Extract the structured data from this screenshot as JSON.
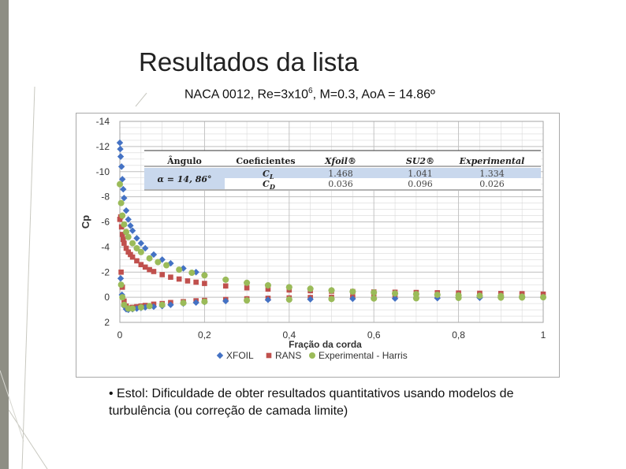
{
  "slide": {
    "title": "Resultados da lista",
    "subtitle_prefix": "NACA 0012, Re=3x10",
    "subtitle_exp": "6",
    "subtitle_suffix": ", M=0.3, AoA = 14.86º",
    "bullet": "• Estol: Dificuldade de obter resultados quantitativos usando modelos de turbulência (ou correção de camada limite)"
  },
  "table": {
    "headers": [
      "Ângulo",
      "Coeficientes",
      "Xfoil®",
      "SU2®",
      "Experimental"
    ],
    "angle": "α = 14, 86°",
    "rows": [
      {
        "coef": "C_L",
        "coef_main": "C",
        "coef_sub": "L",
        "values": [
          "1.468",
          "1.041",
          "1.334"
        ]
      },
      {
        "coef": "C_D",
        "coef_main": "C",
        "coef_sub": "D",
        "values": [
          "0.036",
          "0.096",
          "0.026"
        ]
      }
    ]
  },
  "chart_data": {
    "type": "scatter",
    "ylabel": "Cp",
    "xlabel": "Fração da corda",
    "xlim": [
      0,
      1
    ],
    "ylim": [
      -14,
      2
    ],
    "y_inverted": true,
    "grid": true,
    "legend_position": "bottom",
    "x_ticks": [
      "0",
      "0,2",
      "0,4",
      "0,6",
      "0,8",
      "1"
    ],
    "x_tick_values": [
      0,
      0.2,
      0.4,
      0.6,
      0.8,
      1
    ],
    "y_ticks": [
      "-14",
      "-12",
      "-10",
      "-8",
      "-6",
      "-4",
      "-2",
      "0",
      "2"
    ],
    "y_tick_values": [
      -14,
      -12,
      -10,
      -8,
      -6,
      -4,
      -2,
      0,
      2
    ],
    "series": [
      {
        "name": "XFOIL",
        "marker": "diamond",
        "color": "#4472c4",
        "upper_x": [
          0.0,
          0.001,
          0.002,
          0.004,
          0.006,
          0.008,
          0.01,
          0.015,
          0.02,
          0.025,
          0.03,
          0.04,
          0.05,
          0.06,
          0.08,
          0.1,
          0.12,
          0.15,
          0.18,
          0.2,
          0.25,
          0.3,
          0.35,
          0.4,
          0.45,
          0.5,
          0.55,
          0.6,
          0.65,
          0.7,
          0.75,
          0.8,
          0.85,
          0.9,
          0.95,
          1.0
        ],
        "upper_y": [
          -12.3,
          -11.8,
          -11.2,
          -10.4,
          -9.4,
          -8.6,
          -7.9,
          -6.9,
          -6.2,
          -5.7,
          -5.3,
          -4.7,
          -4.3,
          -3.9,
          -3.4,
          -3.0,
          -2.7,
          -2.3,
          -2.0,
          -1.8,
          -1.4,
          -1.15,
          -0.95,
          -0.8,
          -0.65,
          -0.55,
          -0.45,
          -0.38,
          -0.3,
          -0.25,
          -0.2,
          -0.16,
          -0.12,
          -0.08,
          -0.05,
          0.0
        ],
        "lower_x": [
          0.002,
          0.005,
          0.01,
          0.015,
          0.02,
          0.03,
          0.04,
          0.05,
          0.06,
          0.08,
          0.1,
          0.12,
          0.15,
          0.18,
          0.2,
          0.25,
          0.3,
          0.35,
          0.4,
          0.45,
          0.5,
          0.55,
          0.6,
          0.65,
          0.7,
          0.75,
          0.8,
          0.85,
          0.9,
          0.95
        ],
        "lower_y": [
          -1.5,
          -0.2,
          0.7,
          0.95,
          1.0,
          0.95,
          0.9,
          0.85,
          0.8,
          0.75,
          0.7,
          0.6,
          0.5,
          0.42,
          0.38,
          0.3,
          0.25,
          0.2,
          0.18,
          0.16,
          0.14,
          0.12,
          0.1,
          0.1,
          0.08,
          0.07,
          0.05,
          0.04,
          0.03,
          0.02
        ]
      },
      {
        "name": "RANS",
        "marker": "square",
        "color": "#c0504d",
        "upper_x": [
          0.0,
          0.002,
          0.004,
          0.006,
          0.008,
          0.01,
          0.015,
          0.02,
          0.025,
          0.03,
          0.04,
          0.05,
          0.06,
          0.07,
          0.08,
          0.1,
          0.12,
          0.14,
          0.16,
          0.18,
          0.2,
          0.25,
          0.3,
          0.35,
          0.4,
          0.45,
          0.5,
          0.55,
          0.6,
          0.65,
          0.7,
          0.75,
          0.8,
          0.85,
          0.9,
          0.95,
          1.0
        ],
        "upper_y": [
          -6.2,
          -6.4,
          -5.6,
          -5.0,
          -4.6,
          -4.3,
          -3.9,
          -3.6,
          -3.4,
          -3.2,
          -2.9,
          -2.6,
          -2.4,
          -2.2,
          -2.05,
          -1.8,
          -1.6,
          -1.45,
          -1.3,
          -1.2,
          -1.1,
          -0.9,
          -0.75,
          -0.65,
          -0.58,
          -0.52,
          -0.48,
          -0.45,
          -0.42,
          -0.4,
          -0.38,
          -0.36,
          -0.34,
          -0.32,
          -0.3,
          -0.28,
          -0.25
        ],
        "lower_x": [
          0.003,
          0.006,
          0.01,
          0.015,
          0.02,
          0.03,
          0.04,
          0.05,
          0.06,
          0.08,
          0.1,
          0.12,
          0.15,
          0.18,
          0.2,
          0.25,
          0.3,
          0.35,
          0.4,
          0.45,
          0.5,
          0.55,
          0.6,
          0.65,
          0.7,
          0.75,
          0.8,
          0.85,
          0.9,
          0.95
        ],
        "lower_y": [
          -2.0,
          -0.8,
          0.3,
          0.7,
          0.85,
          0.8,
          0.75,
          0.7,
          0.65,
          0.55,
          0.5,
          0.42,
          0.35,
          0.28,
          0.25,
          0.18,
          0.12,
          0.08,
          0.05,
          0.02,
          0.0,
          -0.02,
          -0.05,
          -0.08,
          -0.1,
          -0.12,
          -0.15,
          -0.18,
          -0.2,
          -0.22
        ]
      },
      {
        "name": "Experimental - Harris",
        "marker": "circle",
        "color": "#9bbb59",
        "upper_x": [
          0.0,
          0.003,
          0.006,
          0.01,
          0.015,
          0.02,
          0.03,
          0.04,
          0.05,
          0.07,
          0.09,
          0.11,
          0.14,
          0.17,
          0.2,
          0.25,
          0.3,
          0.35,
          0.4,
          0.45,
          0.5,
          0.55,
          0.6,
          0.65,
          0.7,
          0.75,
          0.8,
          0.85,
          0.9,
          0.95,
          1.0
        ],
        "upper_y": [
          -9.0,
          -7.5,
          -6.5,
          -5.8,
          -5.2,
          -4.8,
          -4.3,
          -3.9,
          -3.6,
          -3.1,
          -2.8,
          -2.55,
          -2.2,
          -1.95,
          -1.75,
          -1.4,
          -1.15,
          -0.95,
          -0.8,
          -0.68,
          -0.55,
          -0.45,
          -0.38,
          -0.3,
          -0.25,
          -0.2,
          -0.15,
          -0.12,
          -0.1,
          -0.05,
          0.0
        ],
        "lower_x": [
          0.003,
          0.006,
          0.01,
          0.02,
          0.03,
          0.05,
          0.07,
          0.1,
          0.15,
          0.2,
          0.3,
          0.4,
          0.5,
          0.6,
          0.7,
          0.8,
          0.9,
          0.95
        ],
        "lower_y": [
          -1.0,
          0.0,
          0.6,
          0.9,
          0.9,
          0.8,
          0.7,
          0.6,
          0.45,
          0.35,
          0.25,
          0.18,
          0.14,
          0.1,
          0.08,
          0.05,
          0.03,
          0.02
        ]
      }
    ]
  }
}
